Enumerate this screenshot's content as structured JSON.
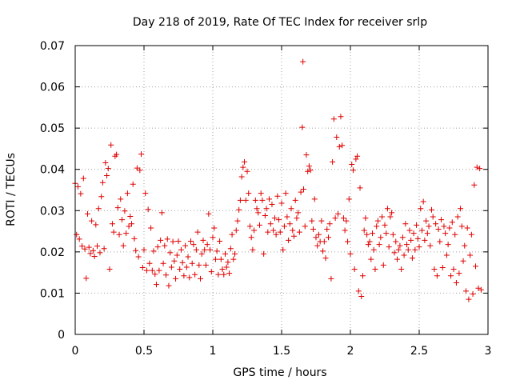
{
  "chart_data": {
    "type": "scatter",
    "title": "Day 218 of 2019, Rate Of TEC Index for receiver srlp",
    "xlabel": "GPS time / hours",
    "ylabel": "ROTI / TECUs",
    "xlim": [
      0,
      3
    ],
    "ylim": [
      0,
      0.07
    ],
    "xticks": [
      0,
      0.5,
      1,
      1.5,
      2,
      2.5,
      3
    ],
    "xtick_labels": [
      "0",
      "0.5",
      "1",
      "1.5",
      "2",
      "2.5",
      "3"
    ],
    "yticks": [
      0,
      0.01,
      0.02,
      0.03,
      0.04,
      0.05,
      0.06,
      0.07
    ],
    "ytick_labels": [
      "0",
      "0.01",
      "0.02",
      "0.03",
      "0.04",
      "0.05",
      "0.06",
      "0.07"
    ],
    "grid": true,
    "marker": "+",
    "color": "#e00000",
    "series": [
      {
        "name": "ROTI",
        "points": [
          [
            0.0,
            0.0366
          ],
          [
            0.01,
            0.0242
          ],
          [
            0.02,
            0.0358
          ],
          [
            0.03,
            0.0231
          ],
          [
            0.04,
            0.0341
          ],
          [
            0.05,
            0.0214
          ],
          [
            0.06,
            0.0378
          ],
          [
            0.07,
            0.0207
          ],
          [
            0.08,
            0.0136
          ],
          [
            0.09,
            0.0292
          ],
          [
            0.1,
            0.0211
          ],
          [
            0.11,
            0.0196
          ],
          [
            0.12,
            0.0275
          ],
          [
            0.13,
            0.0203
          ],
          [
            0.14,
            0.0189
          ],
          [
            0.15,
            0.0266
          ],
          [
            0.16,
            0.0214
          ],
          [
            0.17,
            0.0305
          ],
          [
            0.18,
            0.0198
          ],
          [
            0.19,
            0.0334
          ],
          [
            0.2,
            0.0368
          ],
          [
            0.21,
            0.0208
          ],
          [
            0.22,
            0.0416
          ],
          [
            0.23,
            0.0385
          ],
          [
            0.24,
            0.0402
          ],
          [
            0.25,
            0.0158
          ],
          [
            0.26,
            0.0459
          ],
          [
            0.27,
            0.0268
          ],
          [
            0.28,
            0.0248
          ],
          [
            0.29,
            0.0432
          ],
          [
            0.3,
            0.0436
          ],
          [
            0.31,
            0.0307
          ],
          [
            0.32,
            0.0242
          ],
          [
            0.33,
            0.0328
          ],
          [
            0.34,
            0.0278
          ],
          [
            0.35,
            0.0215
          ],
          [
            0.36,
            0.0299
          ],
          [
            0.37,
            0.0245
          ],
          [
            0.38,
            0.0342
          ],
          [
            0.39,
            0.0262
          ],
          [
            0.4,
            0.0286
          ],
          [
            0.41,
            0.0268
          ],
          [
            0.42,
            0.0364
          ],
          [
            0.43,
            0.0232
          ],
          [
            0.44,
            0.0203
          ],
          [
            0.45,
            0.0403
          ],
          [
            0.46,
            0.0188
          ],
          [
            0.47,
            0.0398
          ],
          [
            0.48,
            0.0437
          ],
          [
            0.49,
            0.0162
          ],
          [
            0.5,
            0.0205
          ],
          [
            0.51,
            0.0342
          ],
          [
            0.52,
            0.0155
          ],
          [
            0.53,
            0.0303
          ],
          [
            0.54,
            0.0172
          ],
          [
            0.55,
            0.0258
          ],
          [
            0.56,
            0.0155
          ],
          [
            0.57,
            0.0202
          ],
          [
            0.58,
            0.0146
          ],
          [
            0.59,
            0.0121
          ],
          [
            0.6,
            0.0212
          ],
          [
            0.61,
            0.0155
          ],
          [
            0.62,
            0.0228
          ],
          [
            0.63,
            0.0295
          ],
          [
            0.64,
            0.0172
          ],
          [
            0.65,
            0.0215
          ],
          [
            0.66,
            0.0144
          ],
          [
            0.67,
            0.0231
          ],
          [
            0.68,
            0.0118
          ],
          [
            0.69,
            0.0198
          ],
          [
            0.7,
            0.0163
          ],
          [
            0.71,
            0.0225
          ],
          [
            0.72,
            0.0178
          ],
          [
            0.73,
            0.0135
          ],
          [
            0.74,
            0.0192
          ],
          [
            0.75,
            0.0226
          ],
          [
            0.76,
            0.0158
          ],
          [
            0.77,
            0.0205
          ],
          [
            0.78,
            0.0174
          ],
          [
            0.79,
            0.0142
          ],
          [
            0.8,
            0.0215
          ],
          [
            0.81,
            0.0163
          ],
          [
            0.82,
            0.0188
          ],
          [
            0.83,
            0.0138
          ],
          [
            0.84,
            0.0226
          ],
          [
            0.85,
            0.0172
          ],
          [
            0.86,
            0.0218
          ],
          [
            0.87,
            0.0145
          ],
          [
            0.88,
            0.0205
          ],
          [
            0.89,
            0.0248
          ],
          [
            0.9,
            0.0168
          ],
          [
            0.91,
            0.0135
          ],
          [
            0.92,
            0.0195
          ],
          [
            0.93,
            0.0228
          ],
          [
            0.94,
            0.0205
          ],
          [
            0.95,
            0.0168
          ],
          [
            0.96,
            0.0218
          ],
          [
            0.97,
            0.0292
          ],
          [
            0.98,
            0.0205
          ],
          [
            0.99,
            0.0152
          ],
          [
            1.0,
            0.0235
          ],
          [
            1.01,
            0.0258
          ],
          [
            1.02,
            0.0182
          ],
          [
            1.03,
            0.0202
          ],
          [
            1.04,
            0.0145
          ],
          [
            1.05,
            0.0226
          ],
          [
            1.06,
            0.0182
          ],
          [
            1.07,
            0.0158
          ],
          [
            1.08,
            0.0145
          ],
          [
            1.09,
            0.0195
          ],
          [
            1.1,
            0.0163
          ],
          [
            1.11,
            0.0175
          ],
          [
            1.12,
            0.0148
          ],
          [
            1.13,
            0.0208
          ],
          [
            1.14,
            0.0242
          ],
          [
            1.15,
            0.0182
          ],
          [
            1.16,
            0.0195
          ],
          [
            1.17,
            0.0252
          ],
          [
            1.18,
            0.0275
          ],
          [
            1.19,
            0.0302
          ],
          [
            1.2,
            0.0325
          ],
          [
            1.21,
            0.0382
          ],
          [
            1.22,
            0.0405
          ],
          [
            1.23,
            0.0418
          ],
          [
            1.24,
            0.0325
          ],
          [
            1.25,
            0.0395
          ],
          [
            1.26,
            0.0342
          ],
          [
            1.27,
            0.0262
          ],
          [
            1.28,
            0.0235
          ],
          [
            1.29,
            0.0205
          ],
          [
            1.3,
            0.0252
          ],
          [
            1.31,
            0.0325
          ],
          [
            1.32,
            0.0305
          ],
          [
            1.33,
            0.0295
          ],
          [
            1.34,
            0.0265
          ],
          [
            1.35,
            0.0342
          ],
          [
            1.36,
            0.0325
          ],
          [
            1.37,
            0.0195
          ],
          [
            1.38,
            0.0288
          ],
          [
            1.39,
            0.0305
          ],
          [
            1.4,
            0.0248
          ],
          [
            1.41,
            0.0328
          ],
          [
            1.42,
            0.0268
          ],
          [
            1.43,
            0.0315
          ],
          [
            1.44,
            0.0252
          ],
          [
            1.45,
            0.0282
          ],
          [
            1.46,
            0.0242
          ],
          [
            1.47,
            0.0335
          ],
          [
            1.48,
            0.0278
          ],
          [
            1.49,
            0.0248
          ],
          [
            1.5,
            0.0318
          ],
          [
            1.51,
            0.0205
          ],
          [
            1.52,
            0.0262
          ],
          [
            1.53,
            0.0342
          ],
          [
            1.54,
            0.0285
          ],
          [
            1.55,
            0.0228
          ],
          [
            1.56,
            0.0268
          ],
          [
            1.57,
            0.0305
          ],
          [
            1.58,
            0.0252
          ],
          [
            1.59,
            0.0238
          ],
          [
            1.6,
            0.0325
          ],
          [
            1.61,
            0.0282
          ],
          [
            1.62,
            0.0295
          ],
          [
            1.63,
            0.0248
          ],
          [
            1.64,
            0.0345
          ],
          [
            1.65,
            0.0502
          ],
          [
            1.655,
            0.0661
          ],
          [
            1.66,
            0.0352
          ],
          [
            1.67,
            0.0262
          ],
          [
            1.68,
            0.0435
          ],
          [
            1.69,
            0.0395
          ],
          [
            1.7,
            0.0408
          ],
          [
            1.71,
            0.0398
          ],
          [
            1.72,
            0.0275
          ],
          [
            1.73,
            0.0255
          ],
          [
            1.74,
            0.0328
          ],
          [
            1.75,
            0.0235
          ],
          [
            1.76,
            0.0215
          ],
          [
            1.77,
            0.0242
          ],
          [
            1.78,
            0.0225
          ],
          [
            1.79,
            0.0275
          ],
          [
            1.8,
            0.0202
          ],
          [
            1.81,
            0.0225
          ],
          [
            1.82,
            0.0185
          ],
          [
            1.83,
            0.0255
          ],
          [
            1.84,
            0.0235
          ],
          [
            1.85,
            0.0268
          ],
          [
            1.86,
            0.0135
          ],
          [
            1.87,
            0.0418
          ],
          [
            1.88,
            0.0522
          ],
          [
            1.89,
            0.0282
          ],
          [
            1.9,
            0.0478
          ],
          [
            1.91,
            0.0292
          ],
          [
            1.92,
            0.0455
          ],
          [
            1.93,
            0.0528
          ],
          [
            1.94,
            0.0458
          ],
          [
            1.95,
            0.0282
          ],
          [
            1.96,
            0.0252
          ],
          [
            1.97,
            0.0275
          ],
          [
            1.98,
            0.0225
          ],
          [
            1.99,
            0.0328
          ],
          [
            2.0,
            0.0195
          ],
          [
            2.01,
            0.0412
          ],
          [
            2.02,
            0.0398
          ],
          [
            2.03,
            0.0158
          ],
          [
            2.04,
            0.0425
          ],
          [
            2.05,
            0.0432
          ],
          [
            2.06,
            0.0105
          ],
          [
            2.07,
            0.0355
          ],
          [
            2.08,
            0.0092
          ],
          [
            2.09,
            0.0142
          ],
          [
            2.1,
            0.0252
          ],
          [
            2.11,
            0.0282
          ],
          [
            2.12,
            0.0242
          ],
          [
            2.13,
            0.0218
          ],
          [
            2.14,
            0.0225
          ],
          [
            2.15,
            0.0182
          ],
          [
            2.16,
            0.0245
          ],
          [
            2.17,
            0.0205
          ],
          [
            2.18,
            0.0158
          ],
          [
            2.19,
            0.0262
          ],
          [
            2.2,
            0.0275
          ],
          [
            2.21,
            0.0218
          ],
          [
            2.22,
            0.0235
          ],
          [
            2.23,
            0.0285
          ],
          [
            2.24,
            0.0168
          ],
          [
            2.25,
            0.0265
          ],
          [
            2.26,
            0.0245
          ],
          [
            2.27,
            0.0305
          ],
          [
            2.28,
            0.0212
          ],
          [
            2.29,
            0.0285
          ],
          [
            2.3,
            0.0295
          ],
          [
            2.31,
            0.0242
          ],
          [
            2.32,
            0.0198
          ],
          [
            2.33,
            0.0225
          ],
          [
            2.34,
            0.0182
          ],
          [
            2.35,
            0.0205
          ],
          [
            2.36,
            0.0215
          ],
          [
            2.37,
            0.0158
          ],
          [
            2.38,
            0.0235
          ],
          [
            2.39,
            0.0192
          ],
          [
            2.4,
            0.0268
          ],
          [
            2.41,
            0.0218
          ],
          [
            2.42,
            0.0205
          ],
          [
            2.43,
            0.0252
          ],
          [
            2.44,
            0.0228
          ],
          [
            2.45,
            0.0185
          ],
          [
            2.46,
            0.0245
          ],
          [
            2.47,
            0.0205
          ],
          [
            2.48,
            0.0265
          ],
          [
            2.49,
            0.0232
          ],
          [
            2.5,
            0.0212
          ],
          [
            2.51,
            0.0305
          ],
          [
            2.52,
            0.0252
          ],
          [
            2.53,
            0.0322
          ],
          [
            2.54,
            0.0228
          ],
          [
            2.55,
            0.0275
          ],
          [
            2.56,
            0.0245
          ],
          [
            2.57,
            0.0262
          ],
          [
            2.58,
            0.0215
          ],
          [
            2.59,
            0.0302
          ],
          [
            2.6,
            0.0285
          ],
          [
            2.61,
            0.0158
          ],
          [
            2.62,
            0.0268
          ],
          [
            2.63,
            0.0142
          ],
          [
            2.64,
            0.0255
          ],
          [
            2.65,
            0.0225
          ],
          [
            2.66,
            0.0278
          ],
          [
            2.67,
            0.0162
          ],
          [
            2.68,
            0.0262
          ],
          [
            2.69,
            0.0245
          ],
          [
            2.7,
            0.0192
          ],
          [
            2.71,
            0.0218
          ],
          [
            2.72,
            0.0258
          ],
          [
            2.73,
            0.0142
          ],
          [
            2.74,
            0.0272
          ],
          [
            2.75,
            0.0158
          ],
          [
            2.76,
            0.0242
          ],
          [
            2.77,
            0.0125
          ],
          [
            2.78,
            0.0285
          ],
          [
            2.79,
            0.0148
          ],
          [
            2.8,
            0.0305
          ],
          [
            2.81,
            0.0262
          ],
          [
            2.82,
            0.0178
          ],
          [
            2.83,
            0.0215
          ],
          [
            2.84,
            0.0105
          ],
          [
            2.85,
            0.0258
          ],
          [
            2.86,
            0.0085
          ],
          [
            2.87,
            0.0192
          ],
          [
            2.88,
            0.0242
          ],
          [
            2.89,
            0.0098
          ],
          [
            2.9,
            0.0362
          ],
          [
            2.91,
            0.0165
          ],
          [
            2.92,
            0.0405
          ],
          [
            2.93,
            0.0112
          ],
          [
            2.94,
            0.0402
          ],
          [
            2.95,
            0.0108
          ]
        ]
      }
    ]
  }
}
